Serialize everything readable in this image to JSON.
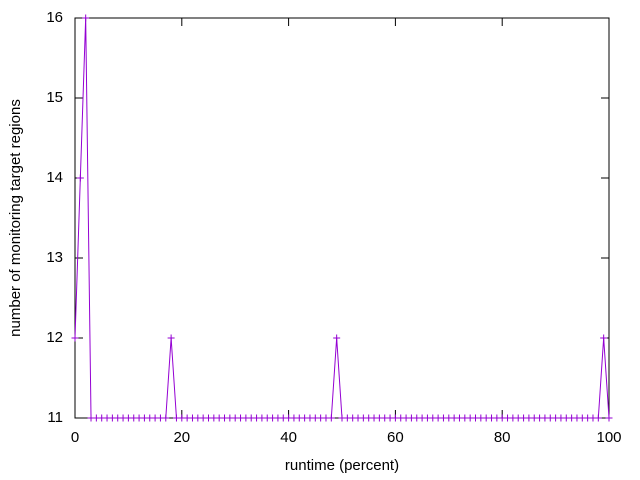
{
  "chart_data": {
    "type": "line",
    "xlabel": "runtime (percent)",
    "ylabel": "number of monitoring target regions",
    "x": [
      0,
      1,
      2,
      3,
      4,
      5,
      6,
      7,
      8,
      9,
      10,
      11,
      12,
      13,
      14,
      15,
      16,
      17,
      18,
      19,
      20,
      21,
      22,
      23,
      24,
      25,
      26,
      27,
      28,
      29,
      30,
      31,
      32,
      33,
      34,
      35,
      36,
      37,
      38,
      39,
      40,
      41,
      42,
      43,
      44,
      45,
      46,
      47,
      48,
      49,
      50,
      51,
      52,
      53,
      54,
      55,
      56,
      57,
      58,
      59,
      60,
      61,
      62,
      63,
      64,
      65,
      66,
      67,
      68,
      69,
      70,
      71,
      72,
      73,
      74,
      75,
      76,
      77,
      78,
      79,
      80,
      81,
      82,
      83,
      84,
      85,
      86,
      87,
      88,
      89,
      90,
      91,
      92,
      93,
      94,
      95,
      96,
      97,
      98,
      99,
      100
    ],
    "values": [
      12,
      14,
      16,
      11,
      11,
      11,
      11,
      11,
      11,
      11,
      11,
      11,
      11,
      11,
      11,
      11,
      11,
      11,
      12,
      11,
      11,
      11,
      11,
      11,
      11,
      11,
      11,
      11,
      11,
      11,
      11,
      11,
      11,
      11,
      11,
      11,
      11,
      11,
      11,
      11,
      11,
      11,
      11,
      11,
      11,
      11,
      11,
      11,
      11,
      12,
      11,
      11,
      11,
      11,
      11,
      11,
      11,
      11,
      11,
      11,
      11,
      11,
      11,
      11,
      11,
      11,
      11,
      11,
      11,
      11,
      11,
      11,
      11,
      11,
      11,
      11,
      11,
      11,
      11,
      11,
      11,
      11,
      11,
      11,
      11,
      11,
      11,
      11,
      11,
      11,
      11,
      11,
      11,
      11,
      11,
      11,
      11,
      11,
      11,
      12,
      11
    ],
    "color": "#9400d3",
    "xlim": [
      0,
      100
    ],
    "xticks": [
      0,
      20,
      40,
      60,
      80,
      100
    ],
    "ylim": [
      11,
      16
    ],
    "yticks": [
      11,
      12,
      13,
      14,
      15,
      16
    ]
  }
}
